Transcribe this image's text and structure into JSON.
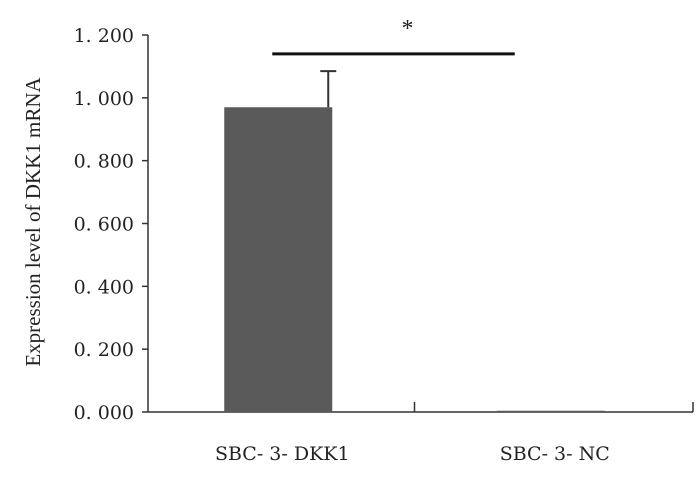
{
  "chart_data": {
    "type": "bar",
    "categories": [
      "SBC- 3- DKK1",
      "SBC- 3- NC"
    ],
    "values": [
      0.97,
      0.004
    ],
    "errors": [
      0.115,
      0
    ],
    "title": "",
    "xlabel": "",
    "ylabel": "Expression level of DKK1 mRNA",
    "ylim": [
      0,
      1.2
    ],
    "yticks": [
      "0. 000",
      "0. 200",
      "0. 400",
      "0. 600",
      "0. 800",
      "1. 000",
      "1. 200"
    ],
    "grid": false,
    "bar_color": "#5a5a5a",
    "significance": {
      "label": "*",
      "between": [
        0,
        1
      ],
      "y": 1.14
    }
  }
}
